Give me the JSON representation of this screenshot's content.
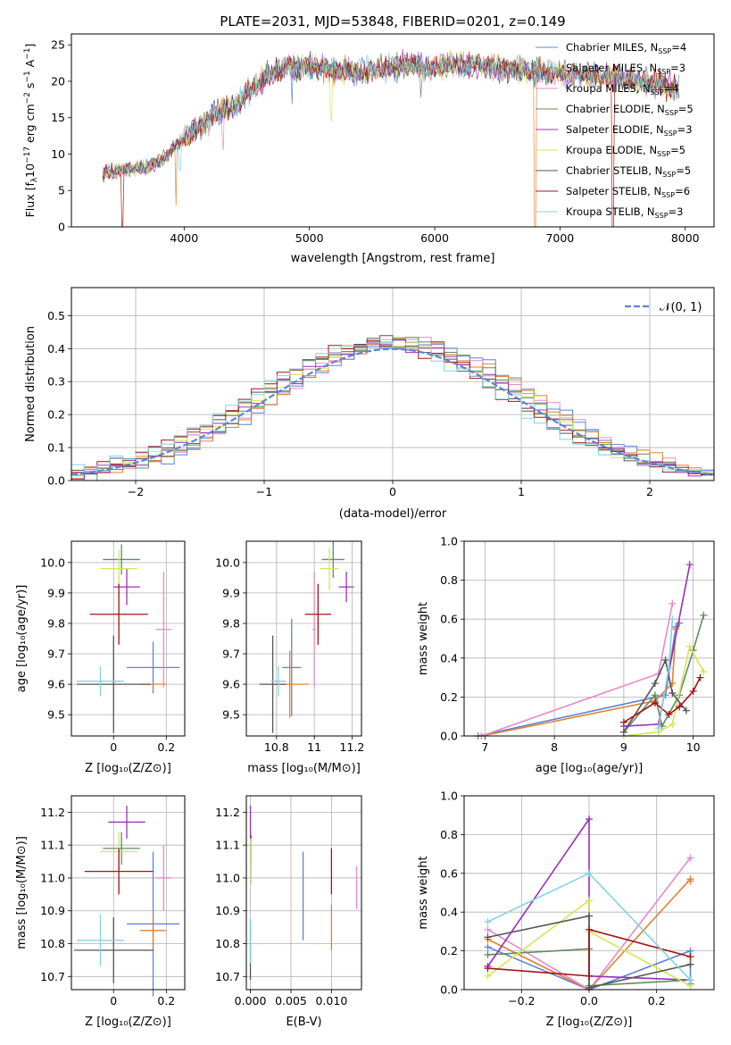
{
  "figure": {
    "title": "PLATE=2031, MJD=53848, FIBERID=0201, z=0.149"
  },
  "colors": {
    "series": [
      "#5b84d8",
      "#e08230",
      "#e889c8",
      "#5f8c5f",
      "#9b30b8",
      "#d3e655",
      "#555555",
      "#a41414",
      "#86d2e0"
    ]
  },
  "models": [
    {
      "name": "Chabrier MILES",
      "nssp": "4",
      "color": "#5b84d8"
    },
    {
      "name": "Salpeter MILES",
      "nssp": "3",
      "color": "#e08230"
    },
    {
      "name": "Kroupa MILES",
      "nssp": "4",
      "color": "#e889c8"
    },
    {
      "name": "Chabrier ELODIE",
      "nssp": "5",
      "color": "#5f8c5f"
    },
    {
      "name": "Salpeter ELODIE",
      "nssp": "3",
      "color": "#9b30b8"
    },
    {
      "name": "Kroupa ELODIE",
      "nssp": "5",
      "color": "#d3e655"
    },
    {
      "name": "Chabrier STELIB",
      "nssp": "5",
      "color": "#555555"
    },
    {
      "name": "Salpeter STELIB",
      "nssp": "6",
      "color": "#a41414"
    },
    {
      "name": "Kroupa STELIB",
      "nssp": "3",
      "color": "#86d2e0"
    }
  ],
  "chart_data": [
    {
      "id": "spectrum",
      "type": "line",
      "xlabel": "wavelength [Angstrom, rest frame]",
      "ylabel_parts": [
        "Flux [f",
        "λ",
        "10",
        "−17",
        " erg cm",
        "−2",
        " s",
        "−1",
        " A",
        "−1",
        "]"
      ],
      "xlim": [
        3100,
        8230
      ],
      "ylim": [
        0,
        26.5
      ],
      "xticks": [
        4000,
        5000,
        6000,
        7000,
        8000
      ],
      "yticks": [
        0,
        5,
        10,
        15,
        20,
        25
      ],
      "legend_position": "upper right",
      "legend_label_sub": "SSP",
      "continuum": {
        "x": [
          3350,
          3500,
          3700,
          3850,
          3950,
          4050,
          4150,
          4250,
          4400,
          4500,
          4600,
          4800,
          5000,
          5200,
          5400,
          5600,
          5800,
          6000,
          6200,
          6500,
          6800,
          7000,
          7200,
          7400,
          7700,
          7950
        ],
        "y": [
          7.2,
          7.8,
          8.2,
          9.5,
          11.5,
          13.0,
          13.8,
          15.5,
          16.5,
          18.5,
          20.0,
          22.0,
          22.0,
          21.5,
          21.3,
          22.0,
          22.3,
          21.8,
          22.5,
          21.8,
          21.3,
          21.0,
          20.8,
          20.5,
          20.0,
          19.0
        ]
      },
      "absorption_dips": [
        {
          "x": 3510,
          "depth": 7.5,
          "color": "#a41414"
        },
        {
          "x": 3935,
          "depth": 9.0,
          "color": "#e08230"
        },
        {
          "x": 3970,
          "depth": 4.5,
          "color": "#86d2e0"
        },
        {
          "x": 4305,
          "depth": 4.0,
          "color": "#e889c8"
        },
        {
          "x": 4862,
          "depth": 3.5,
          "color": "#5b84d8"
        },
        {
          "x": 5175,
          "depth": 5.0,
          "color": "#d3e655"
        },
        {
          "x": 5892,
          "depth": 3.0,
          "color": "#5f8c5f"
        },
        {
          "x": 6800,
          "depth": 21.0,
          "color": "#e08230"
        },
        {
          "x": 7420,
          "depth": 20.5,
          "color": "#a41414"
        }
      ]
    },
    {
      "id": "residuals",
      "type": "histogram",
      "xlabel": "(data-model)/error",
      "ylabel": "Normed distribution",
      "xlim": [
        -2.5,
        2.5
      ],
      "ylim": [
        0,
        0.585
      ],
      "xticks": [
        -2,
        -1,
        0,
        1,
        2
      ],
      "yticks": [
        0.0,
        0.1,
        0.2,
        0.3,
        0.4,
        0.5
      ],
      "grid": true,
      "bin_width": 0.1,
      "reference_curve": {
        "label": "𝒩(0, 1)",
        "mean": 0,
        "sigma": 1,
        "color": "#5b84d8",
        "style": "dashed"
      },
      "legend_position": "upper right"
    },
    {
      "id": "age-vs-Z",
      "type": "scatter",
      "xlabel": "Z [log₁₀(Z/Z⊙)]",
      "ylabel": "age  [log₁₀(age/yr)]",
      "xlim": [
        -0.16,
        0.27
      ],
      "ylim": [
        9.43,
        10.07
      ],
      "xticks": [
        0.0,
        0.2
      ],
      "yticks": [
        9.5,
        9.6,
        9.7,
        9.8,
        9.9,
        10.0
      ],
      "grid": true,
      "points": [
        {
          "x": 0.15,
          "y": 9.655,
          "xerr": 0.1,
          "yerr": 0.085,
          "color": "#5b84d8"
        },
        {
          "x": 0.15,
          "y": 9.6,
          "xerr": 0.05,
          "yerr": 0.0,
          "color": "#e08230"
        },
        {
          "x": 0.19,
          "y": 9.78,
          "xerr": 0.03,
          "yerr": 0.19,
          "color": "#e889c8"
        },
        {
          "x": 0.03,
          "y": 10.01,
          "xerr": 0.07,
          "yerr": 0.05,
          "color": "#5f8c5f"
        },
        {
          "x": 0.05,
          "y": 9.92,
          "xerr": 0.05,
          "yerr": 0.06,
          "color": "#9b30b8"
        },
        {
          "x": 0.02,
          "y": 9.98,
          "xerr": 0.07,
          "yerr": 0.06,
          "color": "#d3e655"
        },
        {
          "x": 0.0,
          "y": 9.6,
          "xerr": 0.14,
          "yerr": 0.16,
          "color": "#555555"
        },
        {
          "x": 0.02,
          "y": 9.83,
          "xerr": 0.11,
          "yerr": 0.1,
          "color": "#a41414"
        },
        {
          "x": -0.05,
          "y": 9.61,
          "xerr": 0.09,
          "yerr": 0.05,
          "color": "#86d2e0"
        }
      ]
    },
    {
      "id": "age-vs-mass",
      "type": "scatter",
      "xlabel": "mass [log₁₀(M/M⊙)]",
      "ylabel": "",
      "xlim": [
        10.64,
        11.25
      ],
      "ylim": [
        9.43,
        10.07
      ],
      "xticks": [
        10.8,
        11.0,
        11.2
      ],
      "yticks": [
        9.5,
        9.6,
        9.7,
        9.8,
        9.9,
        10.0
      ],
      "grid": true,
      "points": [
        {
          "x": 10.88,
          "y": 9.655,
          "xerr": 0.05,
          "yerr": 0.16,
          "color": "#5b84d8"
        },
        {
          "x": 10.87,
          "y": 9.6,
          "xerr": 0.1,
          "yerr": 0.11,
          "color": "#e08230"
        },
        {
          "x": 11.0,
          "y": 9.78,
          "xerr": 0.01,
          "yerr": 0.19,
          "color": "#e889c8"
        },
        {
          "x": 11.1,
          "y": 10.01,
          "xerr": 0.06,
          "yerr": 0.06,
          "color": "#5f8c5f"
        },
        {
          "x": 11.17,
          "y": 9.92,
          "xerr": 0.04,
          "yerr": 0.05,
          "color": "#9b30b8"
        },
        {
          "x": 11.08,
          "y": 9.98,
          "xerr": 0.05,
          "yerr": 0.07,
          "color": "#d3e655"
        },
        {
          "x": 10.78,
          "y": 9.6,
          "xerr": 0.07,
          "yerr": 0.16,
          "color": "#555555"
        },
        {
          "x": 11.02,
          "y": 9.83,
          "xerr": 0.07,
          "yerr": 0.1,
          "color": "#a41414"
        },
        {
          "x": 10.81,
          "y": 9.61,
          "xerr": 0.04,
          "yerr": 0.05,
          "color": "#86d2e0"
        }
      ]
    },
    {
      "id": "weight-vs-age",
      "type": "line",
      "xlabel": "age  [log₁₀(age/yr)]",
      "ylabel": "mass weight",
      "xlim": [
        6.7,
        10.3
      ],
      "ylim": [
        0.0,
        1.0
      ],
      "xticks": [
        7,
        8,
        9,
        10
      ],
      "yticks": [
        0.0,
        0.2,
        0.4,
        0.6,
        0.8,
        1.0
      ],
      "grid": true,
      "series": [
        {
          "x": [
            6.9,
            9.6,
            9.75,
            9.8
          ],
          "y": [
            0.0,
            0.21,
            0.56,
            0.58
          ],
          "color": "#5b84d8"
        },
        {
          "x": [
            6.95,
            9.45,
            9.7,
            9.75
          ],
          "y": [
            0.0,
            0.18,
            0.27,
            0.55
          ],
          "color": "#e08230"
        },
        {
          "x": [
            6.95,
            9.5,
            9.7
          ],
          "y": [
            0.0,
            0.32,
            0.68
          ],
          "color": "#e889c8"
        },
        {
          "x": [
            9.0,
            9.45,
            9.55,
            9.8,
            10.0,
            10.15
          ],
          "y": [
            0.02,
            0.21,
            0.05,
            0.21,
            0.44,
            0.62
          ],
          "color": "#5f8c5f"
        },
        {
          "x": [
            9.0,
            9.5,
            9.95
          ],
          "y": [
            0.05,
            0.06,
            0.88
          ],
          "color": "#9b30b8"
        },
        {
          "x": [
            9.0,
            9.5,
            9.7,
            9.95,
            10.15
          ],
          "y": [
            0.0,
            0.02,
            0.06,
            0.46,
            0.33
          ],
          "color": "#d3e655"
        },
        {
          "x": [
            9.0,
            9.45,
            9.6,
            9.7,
            9.9
          ],
          "y": [
            0.02,
            0.27,
            0.39,
            0.22,
            0.13
          ],
          "color": "#555555"
        },
        {
          "x": [
            9.0,
            9.45,
            9.65,
            9.8,
            10.0,
            10.1
          ],
          "y": [
            0.07,
            0.17,
            0.11,
            0.15,
            0.23,
            0.3
          ],
          "color": "#a41414"
        },
        {
          "x": [
            9.5,
            9.65,
            9.7
          ],
          "y": [
            0.04,
            0.35,
            0.6
          ],
          "color": "#86d2e0"
        }
      ]
    },
    {
      "id": "mass-vs-Z",
      "type": "scatter",
      "xlabel": "Z [log₁₀(Z/Z⊙)]",
      "ylabel": "mass [log₁₀(M/M⊙)]",
      "xlim": [
        -0.16,
        0.27
      ],
      "ylim": [
        10.66,
        11.25
      ],
      "xticks": [
        0.0,
        0.2
      ],
      "yticks": [
        10.7,
        10.8,
        10.9,
        11.0,
        11.1,
        11.2
      ],
      "grid": true,
      "points": [
        {
          "x": 0.15,
          "y": 10.86,
          "xerr": 0.1,
          "yerr": 0.22,
          "color": "#5b84d8"
        },
        {
          "x": 0.15,
          "y": 10.84,
          "xerr": 0.05,
          "yerr": 0.05,
          "color": "#e08230"
        },
        {
          "x": 0.19,
          "y": 11.0,
          "xerr": 0.03,
          "yerr": 0.1,
          "color": "#e889c8"
        },
        {
          "x": 0.03,
          "y": 11.09,
          "xerr": 0.07,
          "yerr": 0.05,
          "color": "#5f8c5f"
        },
        {
          "x": 0.05,
          "y": 11.17,
          "xerr": 0.07,
          "yerr": 0.05,
          "color": "#9b30b8"
        },
        {
          "x": 0.02,
          "y": 11.08,
          "xerr": 0.07,
          "yerr": 0.06,
          "color": "#d3e655"
        },
        {
          "x": 0.0,
          "y": 10.78,
          "xerr": 0.15,
          "yerr": 0.1,
          "color": "#555555"
        },
        {
          "x": 0.02,
          "y": 11.02,
          "xerr": 0.13,
          "yerr": 0.07,
          "color": "#a41414"
        },
        {
          "x": -0.05,
          "y": 10.81,
          "xerr": 0.09,
          "yerr": 0.08,
          "color": "#86d2e0"
        }
      ]
    },
    {
      "id": "mass-vs-EBV",
      "type": "scatter",
      "xlabel": "E(B-V)",
      "ylabel": "",
      "xlim": [
        -0.0005,
        0.0137
      ],
      "ylim": [
        10.66,
        11.25
      ],
      "xticks": [
        0.0,
        0.005,
        0.01
      ],
      "xtick_labels": [
        "0.000",
        "0.005",
        "0.010"
      ],
      "yticks": [
        10.7,
        10.8,
        10.9,
        11.0,
        11.1,
        11.2
      ],
      "grid": true,
      "points": [
        {
          "x": 0.0065,
          "y": 10.945,
          "xerr": 0,
          "yerr": 0.135,
          "color": "#5b84d8"
        },
        {
          "x": 0.01,
          "y": 10.85,
          "xerr": 0,
          "yerr": 0.07,
          "color": "#e08230"
        },
        {
          "x": 0.0131,
          "y": 10.97,
          "xerr": 0,
          "yerr": 0.065,
          "color": "#e889c8"
        },
        {
          "x": 0.0001,
          "y": 11.08,
          "xerr": 0,
          "yerr": 0.05,
          "color": "#5f8c5f"
        },
        {
          "x": 0.0,
          "y": 11.17,
          "xerr": 0,
          "yerr": 0.05,
          "color": "#9b30b8"
        },
        {
          "x": 0.0001,
          "y": 11.05,
          "xerr": 0,
          "yerr": 0.07,
          "color": "#d3e655"
        },
        {
          "x": 0.0,
          "y": 10.78,
          "xerr": 0,
          "yerr": 0.09,
          "color": "#555555"
        },
        {
          "x": 0.01,
          "y": 11.02,
          "xerr": 0,
          "yerr": 0.07,
          "color": "#a41414"
        },
        {
          "x": 0.0,
          "y": 10.81,
          "xerr": 0,
          "yerr": 0.07,
          "color": "#86d2e0"
        }
      ]
    },
    {
      "id": "weight-vs-Z",
      "type": "line",
      "xlabel": "Z [log₁₀(Z/Z⊙)]",
      "ylabel": "mass weight",
      "xlim": [
        -0.37,
        0.37
      ],
      "ylim": [
        0.0,
        1.0
      ],
      "xticks": [
        -0.2,
        0.0,
        0.2
      ],
      "xtick_labels": [
        "−0.2",
        "0.0",
        "0.2"
      ],
      "yticks": [
        0.0,
        0.2,
        0.4,
        0.6,
        0.8,
        1.0
      ],
      "grid": true,
      "series": [
        {
          "x": [
            -0.3,
            0.0,
            0.3,
            0.3
          ],
          "y": [
            0.22,
            0.0,
            0.2,
            0.03
          ],
          "color": "#5b84d8"
        },
        {
          "x": [
            -0.3,
            0.0,
            0.3,
            0.3
          ],
          "y": [
            0.26,
            0.0,
            0.57,
            0.56
          ],
          "color": "#e08230"
        },
        {
          "x": [
            -0.3,
            0.0,
            0.3
          ],
          "y": [
            0.31,
            0.0,
            0.68
          ],
          "color": "#e889c8"
        },
        {
          "x": [
            -0.3,
            0.0,
            0.0,
            0.3
          ],
          "y": [
            0.18,
            0.21,
            0.02,
            0.05
          ],
          "color": "#5f8c5f"
        },
        {
          "x": [
            -0.3,
            0.0,
            0.0,
            0.3
          ],
          "y": [
            0.12,
            0.88,
            0.07,
            0.05
          ],
          "color": "#9b30b8"
        },
        {
          "x": [
            -0.3,
            0.0,
            0.0,
            0.3
          ],
          "y": [
            0.07,
            0.46,
            0.3,
            0.02
          ],
          "color": "#d3e655"
        },
        {
          "x": [
            -0.3,
            0.0,
            0.0,
            0.3
          ],
          "y": [
            0.27,
            0.38,
            0.01,
            0.13
          ],
          "color": "#555555"
        },
        {
          "x": [
            -0.3,
            0.0,
            0.0,
            0.3
          ],
          "y": [
            0.11,
            0.07,
            0.31,
            0.17
          ],
          "color": "#a41414"
        },
        {
          "x": [
            -0.3,
            0.0,
            0.3
          ],
          "y": [
            0.35,
            0.6,
            0.05
          ],
          "color": "#86d2e0"
        }
      ]
    }
  ]
}
